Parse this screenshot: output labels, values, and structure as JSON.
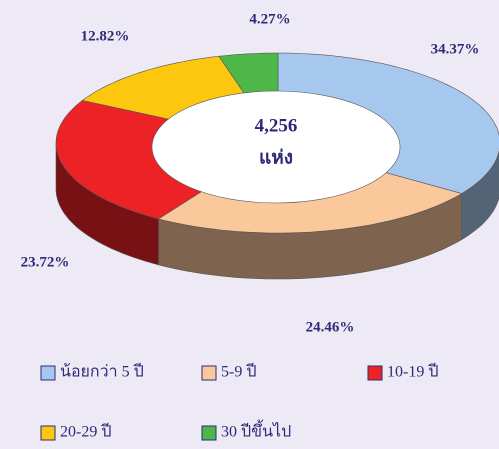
{
  "chart_data": {
    "type": "pie",
    "donut": true,
    "three_d": true,
    "categories": [
      "น้อยกว่า 5 ปี",
      "5-9 ปี",
      "10-19 ปี",
      "20-29 ปี",
      "30 ปีขึ้นไป"
    ],
    "values": [
      34.37,
      24.46,
      23.72,
      12.82,
      4.27
    ],
    "value_labels": [
      "34.37%",
      "24.46%",
      "23.72%",
      "12.82%",
      "4.27%"
    ],
    "colors": [
      "#a7c8ee",
      "#fbc89c",
      "#ed2226",
      "#fec70f",
      "#4db748"
    ],
    "center_text": [
      "4,256",
      "แห่ง"
    ],
    "legend": "bottom"
  }
}
